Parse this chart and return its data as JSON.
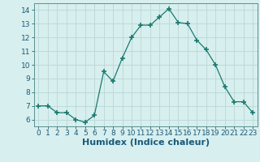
{
  "x": [
    0,
    1,
    2,
    3,
    4,
    5,
    6,
    7,
    8,
    9,
    10,
    11,
    12,
    13,
    14,
    15,
    16,
    17,
    18,
    19,
    20,
    21,
    22,
    23
  ],
  "y": [
    7.0,
    7.0,
    6.5,
    6.5,
    6.0,
    5.8,
    6.3,
    9.5,
    8.8,
    10.5,
    12.0,
    12.9,
    12.9,
    13.5,
    14.1,
    13.1,
    13.0,
    11.8,
    11.1,
    10.0,
    8.4,
    7.3,
    7.3,
    6.5
  ],
  "line_color": "#1c7a70",
  "marker": "+",
  "marker_size": 4,
  "bg_color": "#d7efee",
  "grid_color": "#b8d8d6",
  "xlabel": "Humidex (Indice chaleur)",
  "xlabel_fontsize": 8,
  "xlim": [
    -0.5,
    23.5
  ],
  "ylim": [
    5.5,
    14.5
  ],
  "yticks": [
    6,
    7,
    8,
    9,
    10,
    11,
    12,
    13,
    14
  ],
  "xticks": [
    0,
    1,
    2,
    3,
    4,
    5,
    6,
    7,
    8,
    9,
    10,
    11,
    12,
    13,
    14,
    15,
    16,
    17,
    18,
    19,
    20,
    21,
    22,
    23
  ],
  "tick_fontsize": 6.5,
  "spine_color": "#5a9090",
  "xlabel_color": "#1a5a7a"
}
